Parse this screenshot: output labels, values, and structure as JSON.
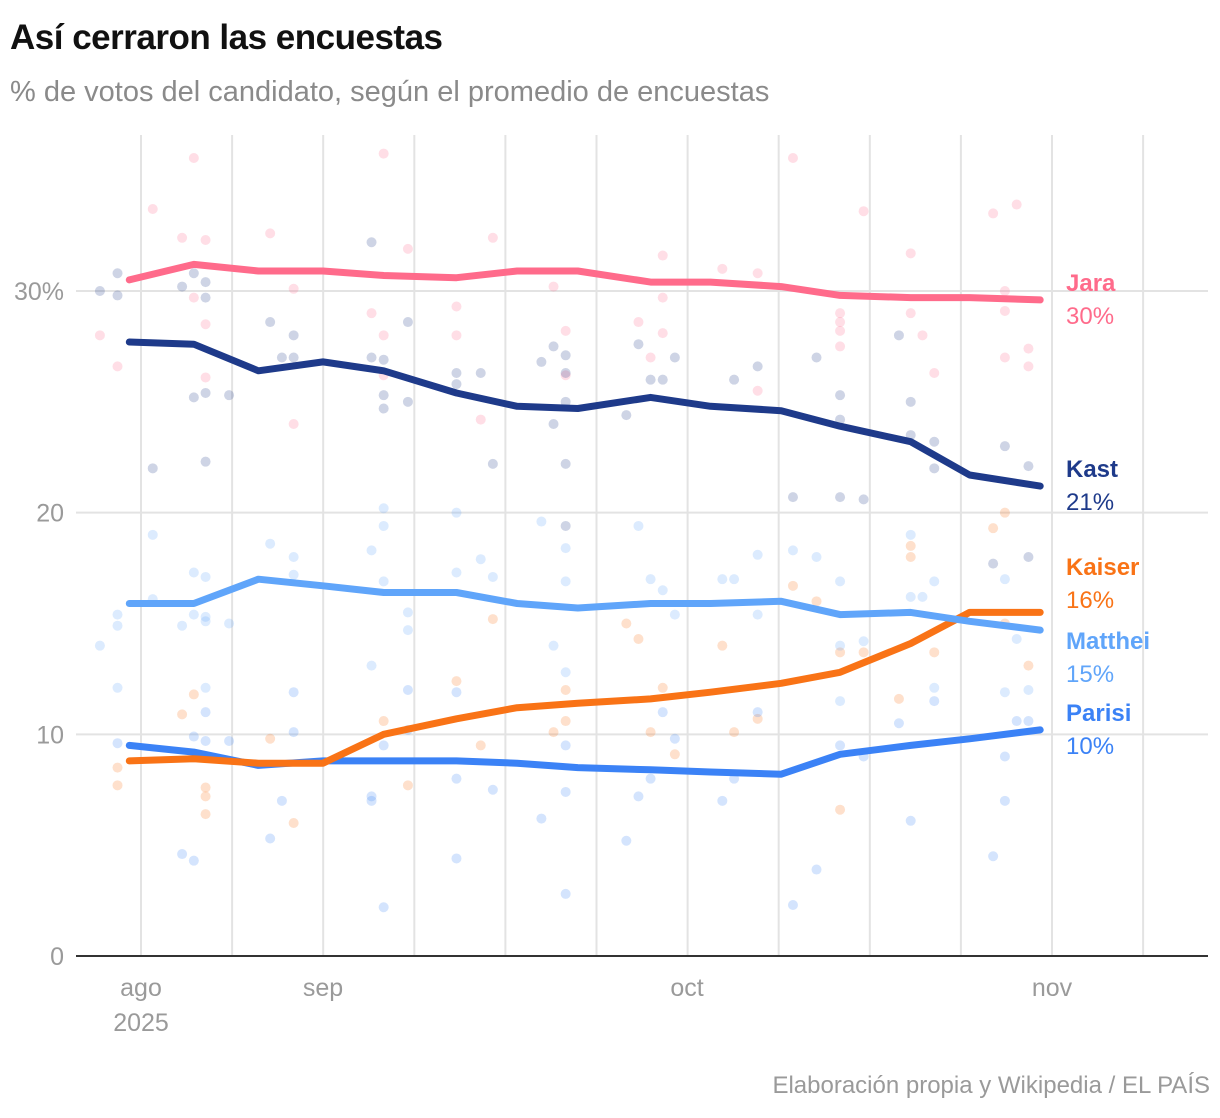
{
  "title": "Así cerraron las encuestas",
  "subtitle": "% de votos del candidato, según el promedio de encuestas",
  "source": "Elaboración propia y Wikipedia / EL PAÍS",
  "chart_data": {
    "type": "line",
    "title": "Así cerraron las encuestas",
    "subtitle": "% de votos del candidato, según el promedio de encuestas",
    "ylim": [
      0,
      30
    ],
    "y_ticks": [
      {
        "value": 0,
        "label": "0"
      },
      {
        "value": 10,
        "label": "10"
      },
      {
        "value": 20,
        "label": "20"
      },
      {
        "value": 30,
        "label": "30%"
      }
    ],
    "x_ticks": [
      {
        "date": "2025-08-01",
        "label": "ago",
        "sublabel": "2025"
      },
      {
        "date": "2025-09-01",
        "label": "sep"
      },
      {
        "date": "2025-10-01",
        "label": "oct"
      },
      {
        "date": "2025-11-01",
        "label": "nov"
      }
    ],
    "grid": true,
    "legend": "direct labels at right end of lines",
    "x": [
      "2025-07-30",
      "2025-08-10",
      "2025-08-21",
      "2025-09-01",
      "2025-09-06",
      "2025-09-12",
      "2025-09-17",
      "2025-09-22",
      "2025-09-28",
      "2025-10-03",
      "2025-10-09",
      "2025-10-14",
      "2025-10-20",
      "2025-10-25",
      "2025-10-31"
    ],
    "series": [
      {
        "name": "Jara",
        "end_label": "30%",
        "color": "#ff6b8b",
        "values": [
          30.5,
          31.2,
          30.9,
          30.9,
          30.7,
          30.6,
          30.9,
          30.9,
          30.4,
          30.4,
          30.2,
          29.8,
          29.7,
          29.7,
          29.6
        ],
        "polls": [
          [
            "2025-07-25",
            28.0
          ],
          [
            "2025-07-28",
            26.6
          ],
          [
            "2025-08-03",
            33.7
          ],
          [
            "2025-08-08",
            32.4
          ],
          [
            "2025-08-10",
            36.0
          ],
          [
            "2025-08-10",
            29.7
          ],
          [
            "2025-08-12",
            32.3
          ],
          [
            "2025-08-12",
            28.5
          ],
          [
            "2025-08-12",
            26.1
          ],
          [
            "2025-08-23",
            32.6
          ],
          [
            "2025-08-27",
            30.1
          ],
          [
            "2025-08-27",
            24.0
          ],
          [
            "2025-09-05",
            29.0
          ],
          [
            "2025-09-06",
            36.2
          ],
          [
            "2025-09-06",
            28.0
          ],
          [
            "2025-09-06",
            26.2
          ],
          [
            "2025-09-08",
            31.9
          ],
          [
            "2025-09-12",
            29.3
          ],
          [
            "2025-09-12",
            28.0
          ],
          [
            "2025-09-14",
            24.2
          ],
          [
            "2025-09-15",
            32.4
          ],
          [
            "2025-09-20",
            30.2
          ],
          [
            "2025-09-21",
            28.2
          ],
          [
            "2025-09-21",
            26.2
          ],
          [
            "2025-09-27",
            28.6
          ],
          [
            "2025-09-28",
            27.0
          ],
          [
            "2025-09-29",
            31.6
          ],
          [
            "2025-09-29",
            29.7
          ],
          [
            "2025-09-29",
            28.1
          ],
          [
            "2025-10-04",
            31.0
          ],
          [
            "2025-10-07",
            30.8
          ],
          [
            "2025-10-07",
            25.5
          ],
          [
            "2025-10-10",
            36.0
          ],
          [
            "2025-10-14",
            29.0
          ],
          [
            "2025-10-14",
            28.6
          ],
          [
            "2025-10-14",
            28.2
          ],
          [
            "2025-10-14",
            27.5
          ],
          [
            "2025-10-16",
            33.6
          ],
          [
            "2025-10-20",
            31.7
          ],
          [
            "2025-10-20",
            29.0
          ],
          [
            "2025-10-21",
            28.0
          ],
          [
            "2025-10-22",
            26.3
          ],
          [
            "2025-10-27",
            33.5
          ],
          [
            "2025-10-28",
            30.0
          ],
          [
            "2025-10-28",
            29.1
          ],
          [
            "2025-10-28",
            27.0
          ],
          [
            "2025-10-29",
            33.9
          ],
          [
            "2025-10-30",
            27.4
          ],
          [
            "2025-10-30",
            26.6
          ]
        ]
      },
      {
        "name": "Kast",
        "end_label": "21%",
        "color": "#1e3a8a",
        "values": [
          27.7,
          27.6,
          26.4,
          26.8,
          26.4,
          25.4,
          24.8,
          24.7,
          25.2,
          24.8,
          24.6,
          23.9,
          23.2,
          21.7,
          21.2
        ],
        "polls": [
          [
            "2025-07-25",
            30.0
          ],
          [
            "2025-07-28",
            30.8
          ],
          [
            "2025-07-28",
            29.8
          ],
          [
            "2025-08-03",
            22.0
          ],
          [
            "2025-08-08",
            30.2
          ],
          [
            "2025-08-10",
            30.8
          ],
          [
            "2025-08-10",
            25.2
          ],
          [
            "2025-08-12",
            30.4
          ],
          [
            "2025-08-12",
            29.7
          ],
          [
            "2025-08-12",
            25.4
          ],
          [
            "2025-08-12",
            22.3
          ],
          [
            "2025-08-16",
            25.3
          ],
          [
            "2025-08-23",
            28.6
          ],
          [
            "2025-08-25",
            27.0
          ],
          [
            "2025-08-27",
            28.0
          ],
          [
            "2025-08-27",
            27.0
          ],
          [
            "2025-09-05",
            32.2
          ],
          [
            "2025-09-05",
            27.0
          ],
          [
            "2025-09-06",
            26.9
          ],
          [
            "2025-09-06",
            25.3
          ],
          [
            "2025-09-06",
            24.7
          ],
          [
            "2025-09-08",
            28.6
          ],
          [
            "2025-09-08",
            25.0
          ],
          [
            "2025-09-12",
            26.3
          ],
          [
            "2025-09-12",
            25.8
          ],
          [
            "2025-09-14",
            26.3
          ],
          [
            "2025-09-15",
            22.2
          ],
          [
            "2025-09-19",
            26.8
          ],
          [
            "2025-09-20",
            27.5
          ],
          [
            "2025-09-20",
            24.0
          ],
          [
            "2025-09-21",
            27.1
          ],
          [
            "2025-09-21",
            26.3
          ],
          [
            "2025-09-21",
            25.0
          ],
          [
            "2025-09-21",
            22.2
          ],
          [
            "2025-09-21",
            19.4
          ],
          [
            "2025-09-26",
            24.4
          ],
          [
            "2025-09-27",
            27.6
          ],
          [
            "2025-09-28",
            26.0
          ],
          [
            "2025-09-29",
            26.0
          ],
          [
            "2025-09-30",
            27.0
          ],
          [
            "2025-10-05",
            26.0
          ],
          [
            "2025-10-07",
            26.6
          ],
          [
            "2025-10-10",
            20.7
          ],
          [
            "2025-10-12",
            27.0
          ],
          [
            "2025-10-14",
            25.3
          ],
          [
            "2025-10-14",
            24.2
          ],
          [
            "2025-10-14",
            20.7
          ],
          [
            "2025-10-16",
            20.6
          ],
          [
            "2025-10-19",
            28.0
          ],
          [
            "2025-10-20",
            25.0
          ],
          [
            "2025-10-20",
            23.5
          ],
          [
            "2025-10-22",
            23.2
          ],
          [
            "2025-10-22",
            22.0
          ],
          [
            "2025-10-28",
            23.0
          ],
          [
            "2025-10-30",
            22.1
          ],
          [
            "2025-10-27",
            17.7
          ],
          [
            "2025-10-30",
            18.0
          ]
        ]
      },
      {
        "name": "Kaiser",
        "end_label": "16%",
        "color": "#f97316",
        "values": [
          8.8,
          8.9,
          8.7,
          8.7,
          10.0,
          10.7,
          11.2,
          11.4,
          11.6,
          11.9,
          12.3,
          12.8,
          14.1,
          15.5,
          15.5
        ],
        "polls": [
          [
            "2025-07-28",
            8.5
          ],
          [
            "2025-07-28",
            7.7
          ],
          [
            "2025-08-08",
            10.9
          ],
          [
            "2025-08-10",
            11.8
          ],
          [
            "2025-08-12",
            7.6
          ],
          [
            "2025-08-12",
            7.2
          ],
          [
            "2025-08-12",
            6.4
          ],
          [
            "2025-08-23",
            9.8
          ],
          [
            "2025-08-27",
            6.0
          ],
          [
            "2025-09-06",
            10.6
          ],
          [
            "2025-09-08",
            7.7
          ],
          [
            "2025-09-12",
            12.4
          ],
          [
            "2025-09-14",
            9.5
          ],
          [
            "2025-09-15",
            15.2
          ],
          [
            "2025-09-20",
            10.1
          ],
          [
            "2025-09-21",
            10.6
          ],
          [
            "2025-09-21",
            12.0
          ],
          [
            "2025-09-26",
            15.0
          ],
          [
            "2025-09-27",
            14.3
          ],
          [
            "2025-09-28",
            10.1
          ],
          [
            "2025-09-29",
            12.1
          ],
          [
            "2025-09-30",
            9.1
          ],
          [
            "2025-10-04",
            14.0
          ],
          [
            "2025-10-05",
            10.1
          ],
          [
            "2025-10-07",
            10.7
          ],
          [
            "2025-10-10",
            16.7
          ],
          [
            "2025-10-12",
            16.0
          ],
          [
            "2025-10-14",
            13.7
          ],
          [
            "2025-10-14",
            6.6
          ],
          [
            "2025-10-16",
            13.7
          ],
          [
            "2025-10-19",
            11.6
          ],
          [
            "2025-10-20",
            18.5
          ],
          [
            "2025-10-20",
            18.0
          ],
          [
            "2025-10-22",
            13.7
          ],
          [
            "2025-10-27",
            19.3
          ],
          [
            "2025-10-28",
            20.0
          ],
          [
            "2025-10-28",
            15.0
          ],
          [
            "2025-10-30",
            13.1
          ]
        ]
      },
      {
        "name": "Matthei",
        "end_label": "15%",
        "color": "#60a5fa",
        "values": [
          15.9,
          15.9,
          17.0,
          16.7,
          16.4,
          16.4,
          15.9,
          15.7,
          15.9,
          15.9,
          16.0,
          15.4,
          15.5,
          15.1,
          14.7
        ],
        "polls": [
          [
            "2025-07-25",
            14.0
          ],
          [
            "2025-07-28",
            15.4
          ],
          [
            "2025-07-28",
            14.9
          ],
          [
            "2025-07-28",
            12.1
          ],
          [
            "2025-08-03",
            19.0
          ],
          [
            "2025-08-03",
            16.1
          ],
          [
            "2025-08-08",
            14.9
          ],
          [
            "2025-08-10",
            17.3
          ],
          [
            "2025-08-10",
            15.4
          ],
          [
            "2025-08-12",
            17.1
          ],
          [
            "2025-08-12",
            15.3
          ],
          [
            "2025-08-12",
            15.1
          ],
          [
            "2025-08-12",
            12.1
          ],
          [
            "2025-08-16",
            15.0
          ],
          [
            "2025-08-23",
            18.6
          ],
          [
            "2025-08-27",
            18.0
          ],
          [
            "2025-08-27",
            17.2
          ],
          [
            "2025-09-05",
            18.3
          ],
          [
            "2025-09-05",
            13.1
          ],
          [
            "2025-09-06",
            20.2
          ],
          [
            "2025-09-06",
            19.4
          ],
          [
            "2025-09-06",
            16.9
          ],
          [
            "2025-09-08",
            15.5
          ],
          [
            "2025-09-08",
            14.7
          ],
          [
            "2025-09-12",
            20.0
          ],
          [
            "2025-09-12",
            17.3
          ],
          [
            "2025-09-14",
            17.9
          ],
          [
            "2025-09-15",
            17.1
          ],
          [
            "2025-09-19",
            19.6
          ],
          [
            "2025-09-21",
            18.4
          ],
          [
            "2025-09-21",
            16.9
          ],
          [
            "2025-09-20",
            14.0
          ],
          [
            "2025-09-21",
            12.8
          ],
          [
            "2025-09-27",
            19.4
          ],
          [
            "2025-09-28",
            17.0
          ],
          [
            "2025-09-29",
            16.5
          ],
          [
            "2025-09-30",
            15.4
          ],
          [
            "2025-10-04",
            17.0
          ],
          [
            "2025-10-05",
            17.0
          ],
          [
            "2025-10-07",
            18.1
          ],
          [
            "2025-10-07",
            15.4
          ],
          [
            "2025-10-10",
            18.3
          ],
          [
            "2025-10-12",
            18.0
          ],
          [
            "2025-10-14",
            16.9
          ],
          [
            "2025-10-14",
            14.0
          ],
          [
            "2025-10-14",
            11.5
          ],
          [
            "2025-10-16",
            14.2
          ],
          [
            "2025-10-20",
            19.0
          ],
          [
            "2025-10-20",
            16.2
          ],
          [
            "2025-10-21",
            16.2
          ],
          [
            "2025-10-22",
            16.9
          ],
          [
            "2025-10-22",
            12.1
          ],
          [
            "2025-10-28",
            17.0
          ],
          [
            "2025-10-28",
            11.9
          ],
          [
            "2025-10-30",
            12.0
          ],
          [
            "2025-10-29",
            14.3
          ]
        ]
      },
      {
        "name": "Parisi",
        "end_label": "10%",
        "color": "#3b82f6",
        "values": [
          9.5,
          9.2,
          8.6,
          8.8,
          8.8,
          8.8,
          8.7,
          8.5,
          8.4,
          8.3,
          8.2,
          9.1,
          9.5,
          9.8,
          10.2
        ],
        "polls": [
          [
            "2025-07-28",
            9.6
          ],
          [
            "2025-08-08",
            4.6
          ],
          [
            "2025-08-10",
            9.9
          ],
          [
            "2025-08-10",
            4.3
          ],
          [
            "2025-08-12",
            11.0
          ],
          [
            "2025-08-12",
            9.7
          ],
          [
            "2025-08-16",
            9.7
          ],
          [
            "2025-08-23",
            5.3
          ],
          [
            "2025-08-25",
            7.0
          ],
          [
            "2025-08-27",
            11.9
          ],
          [
            "2025-08-27",
            10.1
          ],
          [
            "2025-09-05",
            7.2
          ],
          [
            "2025-09-05",
            7.0
          ],
          [
            "2025-09-06",
            9.5
          ],
          [
            "2025-09-06",
            2.2
          ],
          [
            "2025-09-08",
            12.0
          ],
          [
            "2025-09-08",
            10.2
          ],
          [
            "2025-09-12",
            11.9
          ],
          [
            "2025-09-12",
            8.0
          ],
          [
            "2025-09-12",
            4.4
          ],
          [
            "2025-09-15",
            7.5
          ],
          [
            "2025-09-19",
            6.2
          ],
          [
            "2025-09-21",
            2.8
          ],
          [
            "2025-09-21",
            7.4
          ],
          [
            "2025-09-21",
            9.5
          ],
          [
            "2025-09-26",
            5.2
          ],
          [
            "2025-09-27",
            7.2
          ],
          [
            "2025-09-28",
            8.0
          ],
          [
            "2025-09-29",
            11.0
          ],
          [
            "2025-09-30",
            9.8
          ],
          [
            "2025-10-04",
            7.0
          ],
          [
            "2025-10-05",
            8.0
          ],
          [
            "2025-10-07",
            11.0
          ],
          [
            "2025-10-10",
            2.3
          ],
          [
            "2025-10-12",
            3.9
          ],
          [
            "2025-10-14",
            9.5
          ],
          [
            "2025-10-16",
            9.0
          ],
          [
            "2025-10-19",
            10.5
          ],
          [
            "2025-10-20",
            6.1
          ],
          [
            "2025-10-22",
            11.5
          ],
          [
            "2025-10-27",
            4.5
          ],
          [
            "2025-10-28",
            7.0
          ],
          [
            "2025-10-28",
            9.0
          ],
          [
            "2025-10-29",
            10.6
          ],
          [
            "2025-10-30",
            10.6
          ]
        ]
      }
    ]
  }
}
